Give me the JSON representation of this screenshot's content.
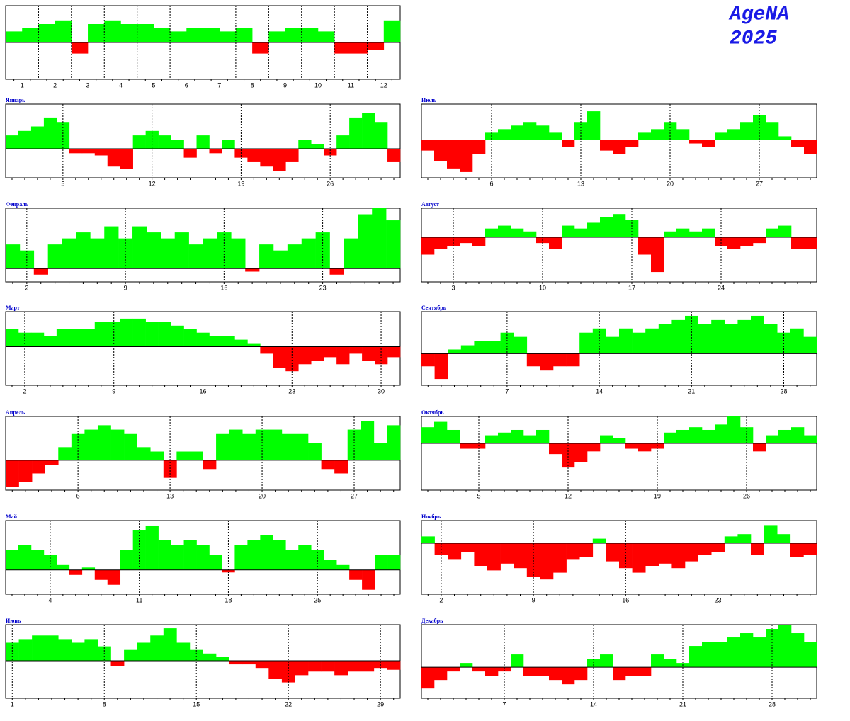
{
  "header": {
    "title": "AgeNA",
    "year": "2025"
  },
  "chart_data": [
    {
      "type": "bar",
      "x": [
        0.75,
        1.25,
        1.75,
        2.25,
        2.75,
        3.25,
        3.75,
        4.25,
        4.75,
        5.25,
        5.75,
        6.25,
        6.75,
        7.25,
        7.75,
        8.25,
        8.75,
        9.25,
        9.75,
        10.25,
        10.75,
        11.25,
        11.75,
        12.25
      ],
      "values": [
        0.3,
        0.4,
        0.5,
        0.6,
        -0.3,
        0.5,
        0.6,
        0.5,
        0.5,
        0.4,
        0.3,
        0.4,
        0.4,
        0.3,
        0.4,
        -0.3,
        0.3,
        0.4,
        0.4,
        0.3,
        -0.3,
        -0.3,
        -0.2,
        0.6
      ],
      "xlim": [
        0.5,
        12.5
      ],
      "ylim": [
        -1,
        1
      ],
      "xticks": [
        1,
        2,
        3,
        4,
        5,
        6,
        7,
        8,
        9,
        10,
        11,
        12
      ],
      "xgrid": [
        1.5,
        2.5,
        3.5,
        4.5,
        5.5,
        6.5,
        7.5,
        8.5,
        9.5,
        10.5,
        11.5
      ],
      "colors": {
        "positive": "#00ff00",
        "negative": "#ff0000"
      }
    },
    {
      "type": "bar",
      "title": "Январь",
      "x": [
        1,
        2,
        3,
        4,
        5,
        6,
        7,
        8,
        9,
        10,
        11,
        12,
        13,
        14,
        15,
        16,
        17,
        18,
        19,
        20,
        21,
        22,
        23,
        24,
        25,
        26,
        27,
        28,
        29,
        30,
        31
      ],
      "values": [
        0.3,
        0.4,
        0.5,
        0.7,
        0.6,
        -0.1,
        -0.1,
        -0.15,
        -0.4,
        -0.45,
        0.3,
        0.4,
        0.3,
        0.2,
        -0.2,
        0.3,
        -0.1,
        0.2,
        -0.2,
        -0.3,
        -0.4,
        -0.5,
        -0.3,
        0.2,
        0.1,
        -0.15,
        0.3,
        0.7,
        0.8,
        0.6,
        -0.3
      ],
      "xlim": [
        0.5,
        31.5
      ],
      "ylim": [
        -0.65,
        1
      ],
      "xticks": [
        5,
        12,
        19,
        26
      ],
      "grid": true,
      "colors": {
        "positive": "#00ff00",
        "negative": "#ff0000"
      }
    },
    {
      "type": "bar",
      "title": "Февраль",
      "x": [
        1,
        2,
        3,
        4,
        5,
        6,
        7,
        8,
        9,
        10,
        11,
        12,
        13,
        14,
        15,
        16,
        17,
        18,
        19,
        20,
        21,
        22,
        23,
        24,
        25,
        26,
        27,
        28
      ],
      "values": [
        0.4,
        0.3,
        -0.1,
        0.4,
        0.5,
        0.6,
        0.5,
        0.7,
        0.5,
        0.7,
        0.6,
        0.5,
        0.6,
        0.4,
        0.5,
        0.6,
        0.5,
        -0.05,
        0.4,
        0.3,
        0.4,
        0.5,
        0.6,
        -0.1,
        0.5,
        0.9,
        1.0,
        0.8
      ],
      "xlim": [
        0.5,
        28.5
      ],
      "ylim": [
        -0.22,
        1
      ],
      "xticks": [
        2,
        9,
        16,
        23
      ],
      "grid": true,
      "colors": {
        "positive": "#00ff00",
        "negative": "#ff0000"
      }
    },
    {
      "type": "bar",
      "title": "Март",
      "x": [
        1,
        2,
        3,
        4,
        5,
        6,
        7,
        8,
        9,
        10,
        11,
        12,
        13,
        14,
        15,
        16,
        17,
        18,
        19,
        20,
        21,
        22,
        23,
        24,
        25,
        26,
        27,
        28,
        29,
        30,
        31
      ],
      "values": [
        0.5,
        0.4,
        0.4,
        0.3,
        0.5,
        0.5,
        0.5,
        0.7,
        0.7,
        0.8,
        0.8,
        0.7,
        0.7,
        0.6,
        0.5,
        0.4,
        0.3,
        0.3,
        0.2,
        0.1,
        -0.2,
        -0.6,
        -0.7,
        -0.5,
        -0.4,
        -0.3,
        -0.5,
        -0.2,
        -0.4,
        -0.5,
        -0.3
      ],
      "xlim": [
        0.5,
        31.5
      ],
      "ylim": [
        -1.1,
        1
      ],
      "xticks": [
        2,
        9,
        16,
        23,
        30
      ],
      "grid": true,
      "colors": {
        "positive": "#00ff00",
        "negative": "#ff0000"
      }
    },
    {
      "type": "bar",
      "title": "Апрель",
      "x": [
        1,
        2,
        3,
        4,
        5,
        6,
        7,
        8,
        9,
        10,
        11,
        12,
        13,
        14,
        15,
        16,
        17,
        18,
        19,
        20,
        21,
        22,
        23,
        24,
        25,
        26,
        27,
        28,
        29,
        30
      ],
      "values": [
        -0.6,
        -0.5,
        -0.3,
        -0.1,
        0.3,
        0.6,
        0.7,
        0.8,
        0.7,
        0.6,
        0.3,
        0.2,
        -0.4,
        0.2,
        0.2,
        -0.2,
        0.6,
        0.7,
        0.6,
        0.7,
        0.7,
        0.6,
        0.6,
        0.4,
        -0.2,
        -0.3,
        0.7,
        0.9,
        0.4,
        0.8
      ],
      "xlim": [
        0.5,
        30.5
      ],
      "ylim": [
        -0.68,
        1
      ],
      "xticks": [
        6,
        13,
        20,
        27
      ],
      "grid": true,
      "colors": {
        "positive": "#00ff00",
        "negative": "#ff0000"
      }
    },
    {
      "type": "bar",
      "title": "Май",
      "x": [
        1,
        2,
        3,
        4,
        5,
        6,
        7,
        8,
        9,
        10,
        11,
        12,
        13,
        14,
        15,
        16,
        17,
        18,
        19,
        20,
        21,
        22,
        23,
        24,
        25,
        26,
        27,
        28,
        29,
        30,
        31
      ],
      "values": [
        0.4,
        0.5,
        0.4,
        0.3,
        0.1,
        -0.1,
        0.05,
        -0.2,
        -0.3,
        0.4,
        0.8,
        0.9,
        0.6,
        0.5,
        0.6,
        0.5,
        0.3,
        -0.05,
        0.5,
        0.6,
        0.7,
        0.6,
        0.4,
        0.5,
        0.4,
        0.2,
        0.1,
        -0.2,
        -0.4,
        0.3,
        0.3
      ],
      "xlim": [
        0.5,
        31.5
      ],
      "ylim": [
        -0.49,
        1
      ],
      "xticks": [
        4,
        11,
        18,
        25
      ],
      "grid": true,
      "colors": {
        "positive": "#00ff00",
        "negative": "#ff0000"
      }
    },
    {
      "type": "bar",
      "title": "Июнь",
      "x": [
        1,
        2,
        3,
        4,
        5,
        6,
        7,
        8,
        9,
        10,
        11,
        12,
        13,
        14,
        15,
        16,
        17,
        18,
        19,
        20,
        21,
        22,
        23,
        24,
        25,
        26,
        27,
        28,
        29,
        30
      ],
      "values": [
        0.5,
        0.6,
        0.7,
        0.7,
        0.6,
        0.5,
        0.6,
        0.4,
        -0.15,
        0.3,
        0.5,
        0.7,
        0.9,
        0.5,
        0.3,
        0.2,
        0.1,
        -0.1,
        -0.1,
        -0.2,
        -0.5,
        -0.6,
        -0.4,
        -0.3,
        -0.3,
        -0.4,
        -0.3,
        -0.3,
        -0.2,
        -0.25
      ],
      "xlim": [
        0.5,
        30.5
      ],
      "ylim": [
        -1.04,
        1
      ],
      "xticks": [
        1,
        8,
        15,
        22,
        29
      ],
      "grid": true,
      "colors": {
        "positive": "#00ff00",
        "negative": "#ff0000"
      }
    },
    {
      "type": "bar",
      "title": "Июль",
      "x": [
        1,
        2,
        3,
        4,
        5,
        6,
        7,
        8,
        9,
        10,
        11,
        12,
        13,
        14,
        15,
        16,
        17,
        18,
        19,
        20,
        21,
        22,
        23,
        24,
        25,
        26,
        27,
        28,
        29,
        30,
        31
      ],
      "values": [
        -0.3,
        -0.6,
        -0.8,
        -0.9,
        -0.4,
        0.2,
        0.3,
        0.4,
        0.5,
        0.4,
        0.2,
        -0.2,
        0.5,
        0.8,
        -0.3,
        -0.4,
        -0.2,
        0.2,
        0.3,
        0.5,
        0.3,
        -0.1,
        -0.2,
        0.2,
        0.3,
        0.5,
        0.7,
        0.5,
        0.1,
        -0.2,
        -0.4
      ],
      "xlim": [
        0.5,
        31.5
      ],
      "ylim": [
        -1.06,
        1
      ],
      "xticks": [
        6,
        13,
        20,
        27
      ],
      "grid": true,
      "colors": {
        "positive": "#00ff00",
        "negative": "#ff0000"
      }
    },
    {
      "type": "bar",
      "title": "Август",
      "x": [
        1,
        2,
        3,
        4,
        5,
        6,
        7,
        8,
        9,
        10,
        11,
        12,
        13,
        14,
        15,
        16,
        17,
        18,
        19,
        20,
        21,
        22,
        23,
        24,
        25,
        26,
        27,
        28,
        29,
        30,
        31
      ],
      "values": [
        -0.6,
        -0.4,
        -0.3,
        -0.2,
        -0.3,
        0.3,
        0.4,
        0.3,
        0.2,
        -0.2,
        -0.4,
        0.4,
        0.3,
        0.5,
        0.7,
        0.8,
        0.6,
        -0.6,
        -1.2,
        0.2,
        0.3,
        0.2,
        0.3,
        -0.3,
        -0.4,
        -0.3,
        -0.2,
        0.3,
        0.4,
        -0.4,
        -0.4
      ],
      "xlim": [
        0.5,
        31.5
      ],
      "ylim": [
        -1.54,
        1
      ],
      "xticks": [
        3,
        10,
        17,
        24
      ],
      "grid": true,
      "colors": {
        "positive": "#00ff00",
        "negative": "#ff0000"
      }
    },
    {
      "type": "bar",
      "title": "Сентябрь",
      "x": [
        1,
        2,
        3,
        4,
        5,
        6,
        7,
        8,
        9,
        10,
        11,
        12,
        13,
        14,
        15,
        16,
        17,
        18,
        19,
        20,
        21,
        22,
        23,
        24,
        25,
        26,
        27,
        28,
        29,
        30
      ],
      "values": [
        -0.3,
        -0.6,
        0.1,
        0.2,
        0.3,
        0.3,
        0.5,
        0.4,
        -0.3,
        -0.4,
        -0.3,
        -0.3,
        0.5,
        0.6,
        0.4,
        0.6,
        0.5,
        0.6,
        0.7,
        0.8,
        0.9,
        0.7,
        0.8,
        0.7,
        0.8,
        0.9,
        0.7,
        0.5,
        0.6,
        0.4
      ],
      "xlim": [
        0.5,
        30.5
      ],
      "ylim": [
        -0.75,
        1
      ],
      "xticks": [
        7,
        14,
        21,
        28
      ],
      "grid": true,
      "colors": {
        "positive": "#00ff00",
        "negative": "#ff0000"
      }
    },
    {
      "type": "bar",
      "title": "Октябрь",
      "x": [
        1,
        2,
        3,
        4,
        5,
        6,
        7,
        8,
        9,
        10,
        11,
        12,
        13,
        14,
        15,
        16,
        17,
        18,
        19,
        20,
        21,
        22,
        23,
        24,
        25,
        26,
        27,
        28,
        29,
        30,
        31
      ],
      "values": [
        0.6,
        0.8,
        0.5,
        -0.2,
        -0.2,
        0.3,
        0.4,
        0.5,
        0.3,
        0.5,
        -0.4,
        -0.9,
        -0.7,
        -0.3,
        0.3,
        0.2,
        -0.2,
        -0.3,
        -0.2,
        0.4,
        0.5,
        0.6,
        0.5,
        0.7,
        1.0,
        0.6,
        -0.3,
        0.3,
        0.5,
        0.6,
        0.3
      ],
      "xlim": [
        0.5,
        31.5
      ],
      "ylim": [
        -1.74,
        1
      ],
      "xticks": [
        5,
        12,
        19,
        26
      ],
      "grid": true,
      "colors": {
        "positive": "#00ff00",
        "negative": "#ff0000"
      }
    },
    {
      "type": "bar",
      "title": "Ноябрь",
      "x": [
        1,
        2,
        3,
        4,
        5,
        6,
        7,
        8,
        9,
        10,
        11,
        12,
        13,
        14,
        15,
        16,
        17,
        18,
        19,
        20,
        21,
        22,
        23,
        24,
        25,
        26,
        27,
        28,
        29,
        30
      ],
      "values": [
        0.3,
        -0.5,
        -0.7,
        -0.4,
        -1.0,
        -1.2,
        -0.9,
        -1.1,
        -1.5,
        -1.6,
        -1.3,
        -0.7,
        -0.6,
        0.2,
        -0.8,
        -1.1,
        -1.3,
        -1.0,
        -0.9,
        -1.1,
        -0.8,
        -0.5,
        -0.4,
        0.3,
        0.4,
        -0.5,
        0.8,
        0.4,
        -0.6,
        -0.5
      ],
      "xlim": [
        0.5,
        30.5
      ],
      "ylim": [
        -2.25,
        1
      ],
      "xticks": [
        2,
        9,
        16,
        23
      ],
      "grid": true,
      "colors": {
        "positive": "#00ff00",
        "negative": "#ff0000"
      }
    },
    {
      "type": "bar",
      "title": "Декабрь",
      "x": [
        1,
        2,
        3,
        4,
        5,
        6,
        7,
        8,
        9,
        10,
        11,
        12,
        13,
        14,
        15,
        16,
        17,
        18,
        19,
        20,
        21,
        22,
        23,
        24,
        25,
        26,
        27,
        28,
        29,
        30,
        31
      ],
      "values": [
        -0.5,
        -0.3,
        -0.1,
        0.1,
        -0.1,
        -0.2,
        -0.1,
        0.3,
        -0.2,
        -0.2,
        -0.3,
        -0.4,
        -0.3,
        0.2,
        0.3,
        -0.3,
        -0.2,
        -0.2,
        0.3,
        0.2,
        0.1,
        0.5,
        0.6,
        0.6,
        0.7,
        0.8,
        0.7,
        0.9,
        1.0,
        0.8,
        0.6
      ],
      "xlim": [
        0.5,
        31.5
      ],
      "ylim": [
        -0.73,
        1
      ],
      "xticks": [
        7,
        14,
        21,
        28
      ],
      "grid": true,
      "colors": {
        "positive": "#00ff00",
        "negative": "#ff0000"
      }
    }
  ]
}
